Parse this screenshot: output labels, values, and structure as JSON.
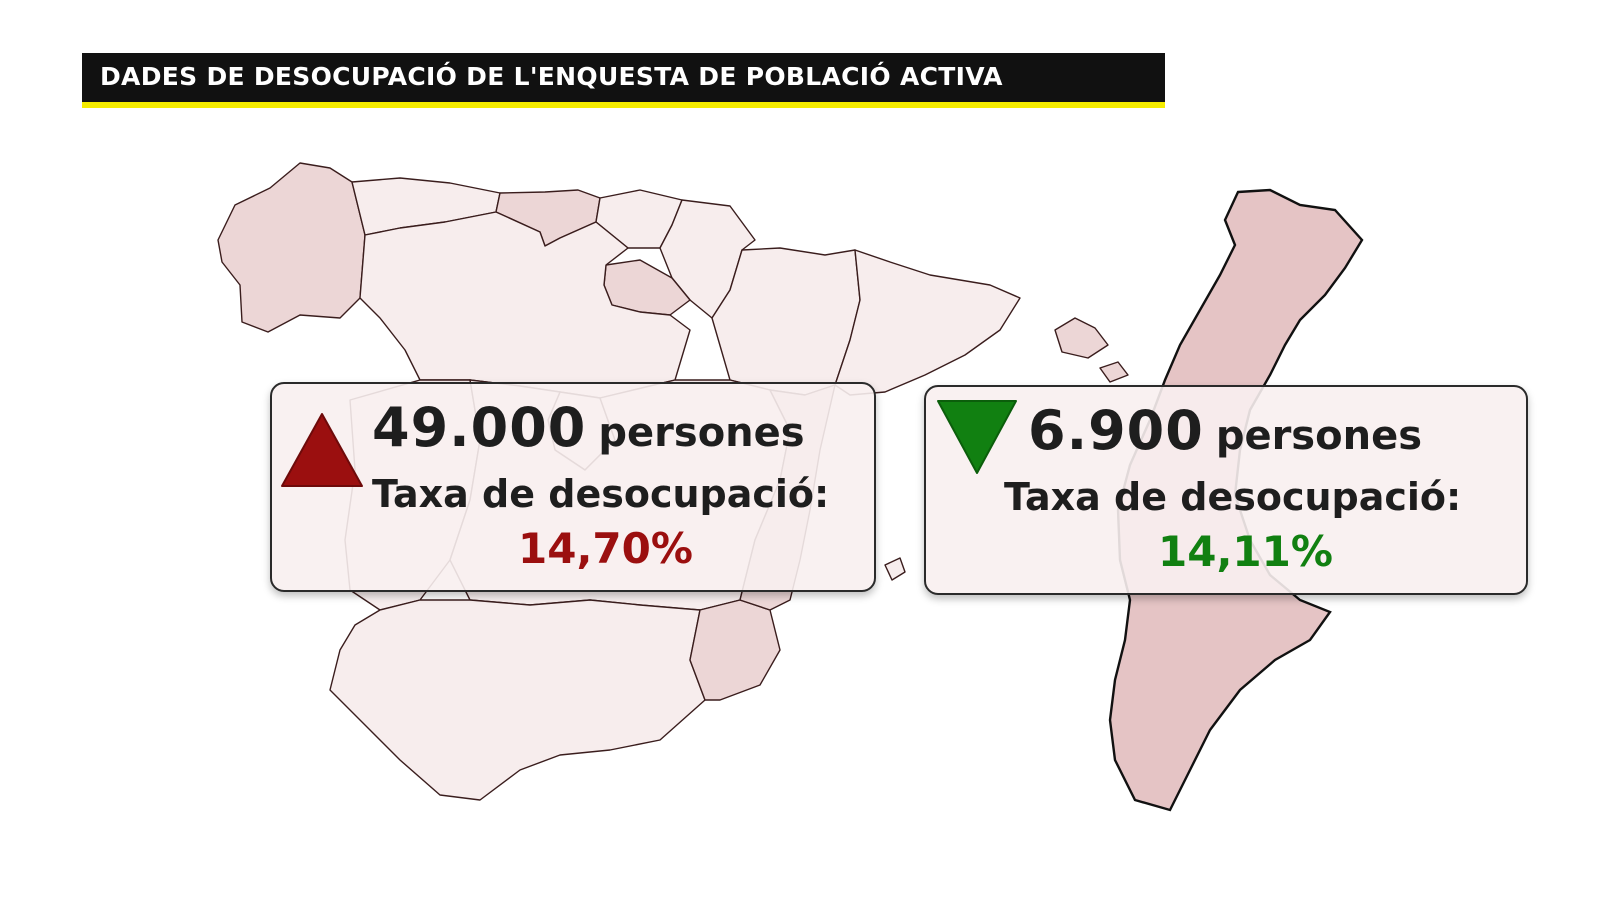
{
  "header": {
    "title": "DADES DE DESOCUPACIÓ DE L'ENQUESTA DE POBLACIÓ ACTIVA"
  },
  "map": {
    "colors": {
      "spain_base": "#f7eded",
      "spain_highlight": "#ecd6d6",
      "valencia": "#e5c4c5",
      "title_underline": "#f5ec00"
    }
  },
  "cards": {
    "spain": {
      "trend_icon": "triangle-up-icon",
      "trend_color": "#9b0f0f",
      "count": "49.000",
      "unit": "persones",
      "rate_label": "Taxa de desocupació:",
      "rate_value": "14,70%",
      "rate_color": "#9b0f0f"
    },
    "valencia": {
      "trend_icon": "triangle-down-icon",
      "trend_color": "#118011",
      "count": "6.900",
      "unit": "persones",
      "rate_label": "Taxa de desocupació:",
      "rate_value": "14,11%",
      "rate_color": "#118011"
    }
  }
}
